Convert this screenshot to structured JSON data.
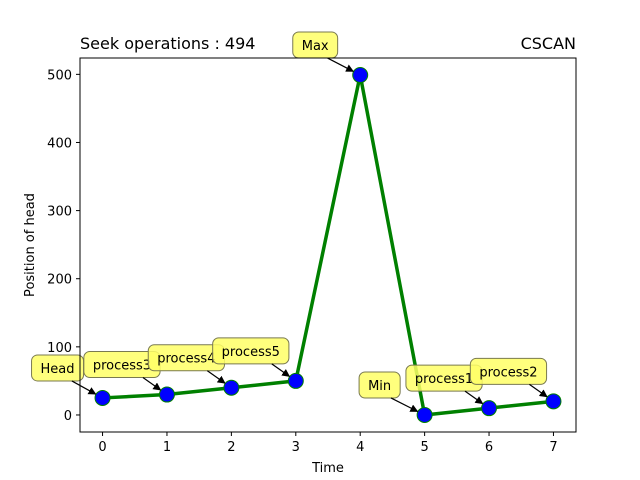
{
  "chart_data": {
    "type": "line",
    "title_left": "Seek operations : 494",
    "title_right": "CSCAN",
    "xlabel": "Time",
    "ylabel": "Position of head",
    "x": [
      0,
      1,
      2,
      3,
      4,
      5,
      6,
      7
    ],
    "y": [
      25,
      30,
      40,
      50,
      499,
      0,
      10,
      20
    ],
    "point_labels": [
      "Head",
      "process3",
      "process4",
      "process5",
      "Max",
      "Min",
      "process1",
      "process2"
    ],
    "xlim": [
      -0.35,
      7.35
    ],
    "ylim": [
      -25,
      524
    ],
    "xticks": [
      0,
      1,
      2,
      3,
      4,
      5,
      6,
      7
    ],
    "yticks": [
      0,
      100,
      200,
      300,
      400,
      500
    ],
    "grid": false,
    "line_color": "#008000",
    "marker_color": "#0000ff",
    "annotation_color": "#ffff66"
  }
}
